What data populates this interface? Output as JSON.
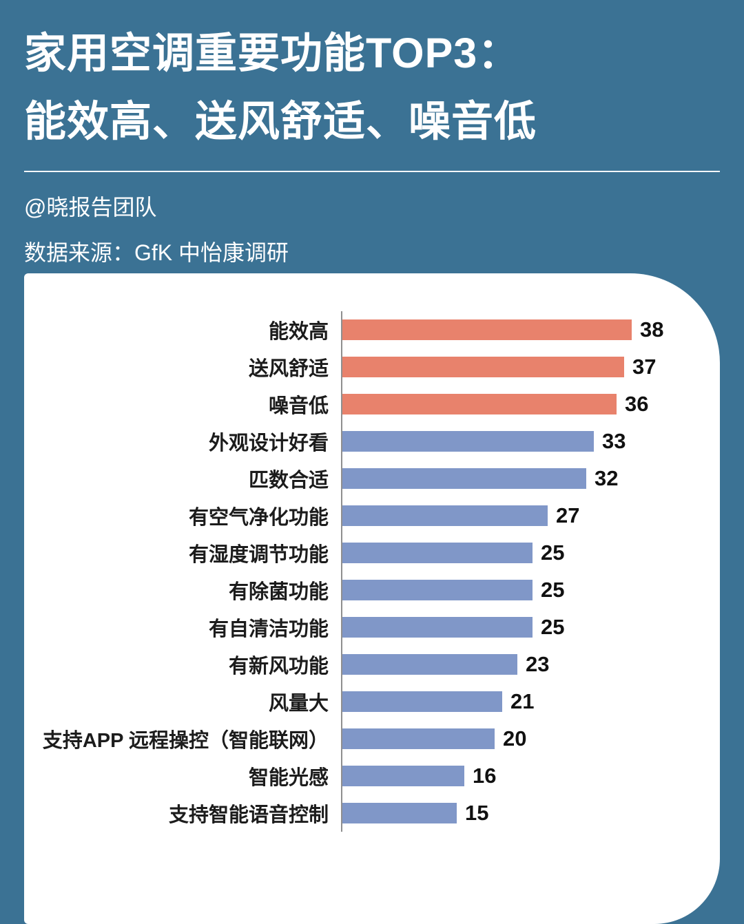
{
  "poster": {
    "title_line1": "家用空调重要功能TOP3：",
    "title_line2": "能效高、送风舒适、噪音低",
    "credit": "@晓报告团队",
    "source": "数据来源：GfK 中怡康调研",
    "colors": {
      "background": "#3B7294",
      "card": "#FFFFFF",
      "highlight_bar": "#E8826C",
      "normal_bar": "#8097C8",
      "axis_line": "#8F8F8F",
      "title_text": "#FFFFFF",
      "label_text": "#1C1C1C"
    }
  },
  "chart_data": {
    "type": "bar",
    "orientation": "horizontal",
    "title": "家用空调重要功能TOP3：能效高、送风舒适、噪音低",
    "xlabel": "",
    "ylabel": "",
    "xlim": [
      0,
      40
    ],
    "grid": false,
    "legend": "none",
    "highlight_count": 3,
    "categories": [
      "能效高",
      "送风舒适",
      "噪音低",
      "外观设计好看",
      "匹数合适",
      "有空气净化功能",
      "有湿度调节功能",
      "有除菌功能",
      "有自清洁功能",
      "有新风功能",
      "风量大",
      "支持APP 远程操控（智能联网）",
      "智能光感",
      "支持智能语音控制"
    ],
    "values": [
      38,
      37,
      36,
      33,
      32,
      27,
      25,
      25,
      25,
      23,
      21,
      20,
      16,
      15
    ]
  }
}
